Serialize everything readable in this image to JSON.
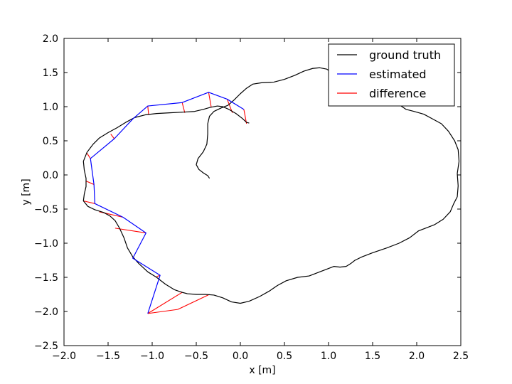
{
  "chart_data": {
    "type": "line",
    "title": "",
    "xlabel": "x [m]",
    "ylabel": "y [m]",
    "xlim": [
      -2.0,
      2.5
    ],
    "ylim": [
      -2.5,
      2.0
    ],
    "xticks": [
      -2.0,
      -1.5,
      -1.0,
      -0.5,
      0.0,
      0.5,
      1.0,
      1.5,
      2.0,
      2.5
    ],
    "xtick_labels": [
      "−2.0",
      "−1.5",
      "−1.0",
      "−0.5",
      "0.0",
      "0.5",
      "1.0",
      "1.5",
      "2.0",
      "2.5"
    ],
    "yticks": [
      -2.5,
      -2.0,
      -1.5,
      -1.0,
      -0.5,
      0.0,
      0.5,
      1.0,
      1.5,
      2.0
    ],
    "ytick_labels": [
      "−2.5",
      "−2.0",
      "−1.5",
      "−1.0",
      "−0.5",
      "0.0",
      "0.5",
      "1.0",
      "1.5",
      "2.0"
    ],
    "grid": false,
    "legend": {
      "position": "top-right",
      "entries": [
        {
          "label": "ground truth",
          "color": "#000000"
        },
        {
          "label": "estimated",
          "color": "#0000ff"
        },
        {
          "label": "difference",
          "color": "#ff0000"
        }
      ]
    },
    "series": [
      {
        "name": "ground truth",
        "color": "#000000",
        "points": [
          [
            -0.35,
            -0.05
          ],
          [
            -0.37,
            -0.01
          ],
          [
            -0.42,
            0.03
          ],
          [
            -0.47,
            0.08
          ],
          [
            -0.5,
            0.15
          ],
          [
            -0.48,
            0.24
          ],
          [
            -0.42,
            0.34
          ],
          [
            -0.38,
            0.45
          ],
          [
            -0.37,
            0.6
          ],
          [
            -0.37,
            0.75
          ],
          [
            -0.35,
            0.86
          ],
          [
            -0.3,
            0.93
          ],
          [
            -0.22,
            0.98
          ],
          [
            -0.14,
            1.02
          ],
          [
            -0.07,
            1.1
          ],
          [
            0.0,
            1.19
          ],
          [
            0.07,
            1.27
          ],
          [
            0.14,
            1.33
          ],
          [
            0.24,
            1.35
          ],
          [
            0.38,
            1.36
          ],
          [
            0.5,
            1.4
          ],
          [
            0.62,
            1.46
          ],
          [
            0.72,
            1.52
          ],
          [
            0.82,
            1.56
          ],
          [
            0.9,
            1.57
          ],
          [
            0.98,
            1.55
          ],
          [
            1.05,
            1.49
          ],
          [
            1.12,
            1.42
          ],
          [
            1.22,
            1.36
          ],
          [
            1.34,
            1.31
          ],
          [
            1.48,
            1.27
          ],
          [
            1.6,
            1.22
          ],
          [
            1.72,
            1.13
          ],
          [
            1.8,
            1.03
          ],
          [
            1.88,
            0.96
          ],
          [
            1.97,
            0.93
          ],
          [
            2.08,
            0.89
          ],
          [
            2.18,
            0.82
          ],
          [
            2.28,
            0.75
          ],
          [
            2.36,
            0.64
          ],
          [
            2.43,
            0.5
          ],
          [
            2.47,
            0.37
          ],
          [
            2.48,
            0.2
          ],
          [
            2.46,
            0.02
          ],
          [
            2.47,
            -0.16
          ],
          [
            2.46,
            -0.32
          ],
          [
            2.42,
            -0.42
          ],
          [
            2.38,
            -0.54
          ],
          [
            2.3,
            -0.65
          ],
          [
            2.2,
            -0.73
          ],
          [
            2.12,
            -0.77
          ],
          [
            2.02,
            -0.82
          ],
          [
            1.92,
            -0.92
          ],
          [
            1.8,
            -1.0
          ],
          [
            1.66,
            -1.07
          ],
          [
            1.5,
            -1.14
          ],
          [
            1.38,
            -1.2
          ],
          [
            1.3,
            -1.25
          ],
          [
            1.25,
            -1.3
          ],
          [
            1.2,
            -1.34
          ],
          [
            1.13,
            -1.35
          ],
          [
            1.06,
            -1.34
          ],
          [
            1.0,
            -1.37
          ],
          [
            0.9,
            -1.42
          ],
          [
            0.78,
            -1.48
          ],
          [
            0.65,
            -1.5
          ],
          [
            0.52,
            -1.55
          ],
          [
            0.42,
            -1.62
          ],
          [
            0.33,
            -1.7
          ],
          [
            0.22,
            -1.78
          ],
          [
            0.1,
            -1.85
          ],
          [
            0.0,
            -1.88
          ],
          [
            -0.1,
            -1.86
          ],
          [
            -0.2,
            -1.8
          ],
          [
            -0.3,
            -1.76
          ],
          [
            -0.4,
            -1.75
          ],
          [
            -0.5,
            -1.75
          ],
          [
            -0.6,
            -1.74
          ],
          [
            -0.66,
            -1.72
          ],
          [
            -0.75,
            -1.68
          ],
          [
            -0.85,
            -1.6
          ],
          [
            -0.95,
            -1.5
          ],
          [
            -1.05,
            -1.42
          ],
          [
            -1.15,
            -1.3
          ],
          [
            -1.22,
            -1.2
          ],
          [
            -1.28,
            -1.07
          ],
          [
            -1.32,
            -0.92
          ],
          [
            -1.37,
            -0.78
          ],
          [
            -1.42,
            -0.67
          ],
          [
            -1.48,
            -0.6
          ],
          [
            -1.55,
            -0.55
          ],
          [
            -1.65,
            -0.51
          ],
          [
            -1.73,
            -0.46
          ],
          [
            -1.78,
            -0.38
          ],
          [
            -1.77,
            -0.28
          ],
          [
            -1.75,
            -0.17
          ],
          [
            -1.75,
            -0.05
          ],
          [
            -1.77,
            0.07
          ],
          [
            -1.78,
            0.2
          ],
          [
            -1.74,
            0.33
          ],
          [
            -1.67,
            0.45
          ],
          [
            -1.6,
            0.54
          ],
          [
            -1.5,
            0.62
          ],
          [
            -1.4,
            0.69
          ],
          [
            -1.3,
            0.77
          ],
          [
            -1.2,
            0.84
          ],
          [
            -1.08,
            0.88
          ],
          [
            -0.95,
            0.9
          ],
          [
            -0.8,
            0.91
          ],
          [
            -0.65,
            0.92
          ],
          [
            -0.52,
            0.93
          ],
          [
            -0.42,
            0.96
          ],
          [
            -0.34,
            0.99
          ],
          [
            -0.26,
            1.01
          ],
          [
            -0.2,
            1.0
          ],
          [
            -0.13,
            0.96
          ],
          [
            -0.05,
            0.9
          ],
          [
            0.02,
            0.83
          ],
          [
            0.07,
            0.77
          ],
          [
            0.1,
            0.76
          ]
        ]
      },
      {
        "name": "estimated",
        "color": "#0000ff",
        "points": [
          [
            0.04,
            0.96
          ],
          [
            -0.15,
            1.11
          ],
          [
            -0.36,
            1.21
          ],
          [
            -0.66,
            1.06
          ],
          [
            -1.05,
            1.01
          ],
          [
            -1.22,
            0.82
          ],
          [
            -1.43,
            0.53
          ],
          [
            -1.7,
            0.24
          ],
          [
            -1.66,
            -0.14
          ],
          [
            -1.65,
            -0.42
          ],
          [
            -1.33,
            -0.62
          ],
          [
            -1.07,
            -0.85
          ],
          [
            -1.22,
            -1.22
          ],
          [
            -0.91,
            -1.47
          ],
          [
            -1.05,
            -2.03
          ]
        ]
      }
    ],
    "differences": [
      [
        [
          0.04,
          0.96
        ],
        [
          0.07,
          0.75
        ]
      ],
      [
        [
          -0.15,
          1.11
        ],
        [
          -0.09,
          0.91
        ]
      ],
      [
        [
          -0.36,
          1.21
        ],
        [
          -0.33,
          0.99
        ]
      ],
      [
        [
          -0.66,
          1.06
        ],
        [
          -0.63,
          0.91
        ]
      ],
      [
        [
          -1.05,
          1.01
        ],
        [
          -1.04,
          0.88
        ]
      ],
      [
        [
          -1.22,
          0.82
        ],
        [
          -1.23,
          0.82
        ]
      ],
      [
        [
          -1.43,
          0.53
        ],
        [
          -1.47,
          0.6
        ]
      ],
      [
        [
          -1.7,
          0.24
        ],
        [
          -1.74,
          0.32
        ]
      ],
      [
        [
          -1.66,
          -0.14
        ],
        [
          -1.75,
          -0.09
        ]
      ],
      [
        [
          -1.65,
          -0.42
        ],
        [
          -1.78,
          -0.38
        ]
      ],
      [
        [
          -1.33,
          -0.62
        ],
        [
          -1.6,
          -0.54
        ]
      ],
      [
        [
          -1.07,
          -0.85
        ],
        [
          -1.42,
          -0.78
        ]
      ],
      [
        [
          -1.22,
          -1.22
        ],
        [
          -1.22,
          -1.21
        ]
      ],
      [
        [
          -0.91,
          -1.47
        ],
        [
          -0.95,
          -1.49
        ]
      ],
      [
        [
          -1.05,
          -2.03
        ],
        [
          -0.66,
          -1.72
        ]
      ],
      [
        [
          -1.05,
          -2.03
        ],
        [
          -0.71,
          -1.97
        ]
      ],
      [
        [
          -0.71,
          -1.97
        ],
        [
          -0.35,
          -1.75
        ]
      ]
    ]
  }
}
